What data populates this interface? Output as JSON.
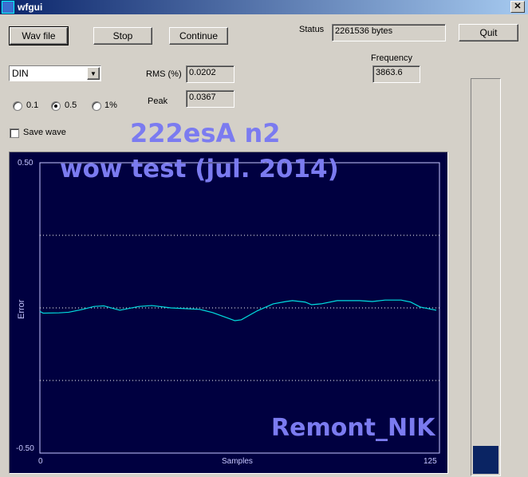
{
  "window": {
    "title": "wfgui",
    "close_icon": "close-icon"
  },
  "toolbar": {
    "wav_file": "Wav file",
    "stop": "Stop",
    "continue": "Continue",
    "quit": "Quit"
  },
  "status": {
    "label": "Status",
    "value": "2261536 bytes"
  },
  "frequency": {
    "label": "Frequency",
    "value": "3863.6"
  },
  "weighting": {
    "selected": "DIN"
  },
  "rms": {
    "label": "RMS (%)",
    "value": "0.0202"
  },
  "peak": {
    "label": "Peak",
    "value": "0.0367"
  },
  "range": {
    "options": [
      "0.1",
      "0.5",
      "1%"
    ],
    "selected": "0.5"
  },
  "save_wave": {
    "label": "Save wave",
    "checked": false
  },
  "overlay": {
    "line1": "222esA n2",
    "line2": "wow test (jul. 2014)",
    "signature": "Remont_NIK"
  },
  "level_meter": {
    "fill_fraction": 0.07,
    "color": "#0a2463"
  },
  "colors": {
    "plot_bg": "#000040",
    "trace": "#00e0e0",
    "axis": "#c8c8ff"
  },
  "chart_data": {
    "type": "line",
    "xlabel": "Samples",
    "ylabel": "Error",
    "xlim": [
      0,
      125
    ],
    "ylim": [
      -0.5,
      0.5
    ],
    "x_ticks": [
      "0",
      "125"
    ],
    "y_ticks": [
      "0.50",
      "-0.50"
    ],
    "grid": "dotted horizontal at -0.25, 0, 0.25",
    "x": [
      0,
      1,
      6,
      9,
      13,
      17,
      20,
      25,
      31,
      35,
      41,
      50,
      54,
      59,
      61,
      63,
      68,
      73,
      77,
      79,
      83,
      85,
      88,
      93,
      100,
      104,
      108,
      113,
      116,
      119,
      124
    ],
    "y": [
      -0.012,
      -0.018,
      -0.017,
      -0.015,
      -0.006,
      0.005,
      0.007,
      -0.008,
      0.005,
      0.008,
      0,
      -0.005,
      -0.016,
      -0.036,
      -0.044,
      -0.041,
      -0.01,
      0.014,
      0.022,
      0.025,
      0.02,
      0.011,
      0.014,
      0.025,
      0.025,
      0.022,
      0.027,
      0.027,
      0.02,
      0.003,
      -0.008
    ]
  }
}
